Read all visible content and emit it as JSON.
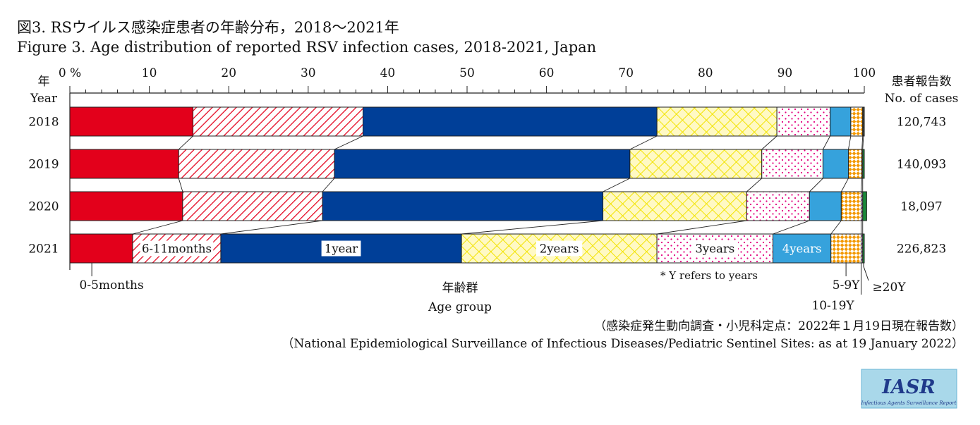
{
  "chart_data": {
    "type": "bar",
    "stacked": "100% horizontal",
    "title_ja": "図3. RSウイルス感染症患者の年齢分布，2018〜2021年",
    "title_en": "Figure 3. Age distribution of reported RSV infection cases, 2018-2021, Japan",
    "ylabel_ja": "年",
    "ylabel_en": "Year",
    "right_header_ja": "患者報告数",
    "right_header_en": "No. of cases",
    "xlabel_ja": "年齢群",
    "xlabel_en": "Age group",
    "xlim": [
      0,
      100
    ],
    "x_ticks": [
      "0 %",
      "10",
      "20",
      "30",
      "40",
      "50",
      "60",
      "70",
      "80",
      "90",
      "100"
    ],
    "categories": [
      "2018",
      "2019",
      "2020",
      "2021"
    ],
    "cases": [
      "120,743",
      "140,093",
      "18,097",
      "226,823"
    ],
    "series": [
      {
        "name": "0-5months",
        "color": "#e3001b",
        "pattern": "solid",
        "values": [
          15.5,
          13.7,
          14.2,
          7.9
        ]
      },
      {
        "name": "6-11months",
        "color": "#e3001b",
        "pattern": "hatch",
        "values": [
          21.4,
          19.6,
          17.6,
          11.1
        ]
      },
      {
        "name": "1year",
        "color": "#003f98",
        "pattern": "solid",
        "values": [
          37.0,
          37.2,
          35.3,
          30.3
        ]
      },
      {
        "name": "2years",
        "color": "#fff200",
        "pattern": "crosshatch",
        "values": [
          15.1,
          16.6,
          18.1,
          24.6
        ]
      },
      {
        "name": "3years",
        "color": "#e4007f",
        "pattern": "dots",
        "values": [
          6.7,
          7.7,
          7.9,
          14.6
        ]
      },
      {
        "name": "4years",
        "color": "#36a2dc",
        "pattern": "solid",
        "values": [
          2.6,
          3.2,
          4.0,
          7.3
        ]
      },
      {
        "name": "5-9Y",
        "color": "#f39800",
        "pattern": "checker",
        "values": [
          1.5,
          1.7,
          2.5,
          3.8
        ]
      },
      {
        "name": "10-19Y",
        "color": "#7a1f8c",
        "pattern": "hatch",
        "values": [
          0.1,
          0.1,
          0.2,
          0.2
        ]
      },
      {
        "name": "≥20Y",
        "color": "#1b8a3a",
        "pattern": "solid",
        "values": [
          0.1,
          0.2,
          0.5,
          0.2
        ]
      }
    ],
    "inbar_labels": [
      "6-11months",
      "1year",
      "2years",
      "3years",
      "4years"
    ],
    "below_labels": [
      "0-5months",
      "5-9Y",
      "10-19Y",
      "≥20Y"
    ],
    "annotation": "* Y refers to years"
  },
  "source_ja": "（感染症発生動向調査・小児科定点：2022年１月19日現在報告数）",
  "source_en": "（National Epidemiological Surveillance of Infectious Diseases/Pediatric Sentinel Sites: as at 19 January 2022）",
  "logo": {
    "main": "IASR",
    "sub": "Infectious Agents Surveillance Report"
  }
}
